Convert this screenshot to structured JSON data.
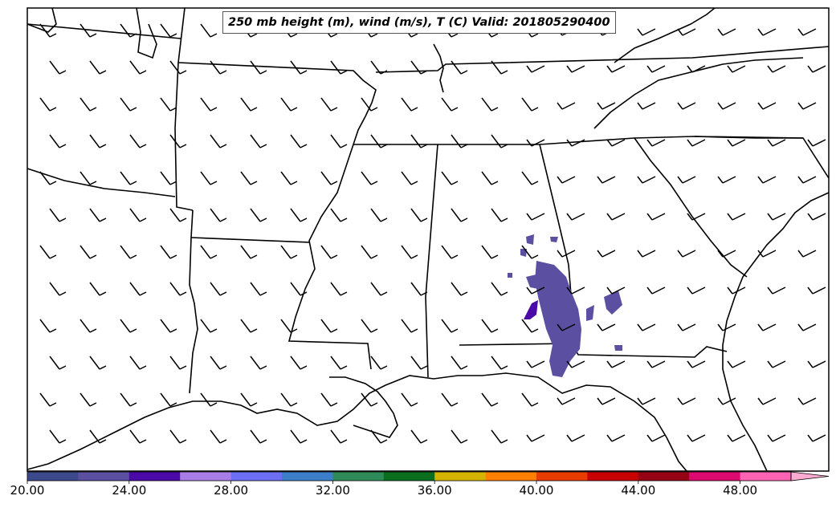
{
  "title": "250 mb height (m), wind (m/s), T (C) Valid: 201805290400",
  "colorbar": {
    "colors": [
      "#3c4a8c",
      "#5a4fa0",
      "#4b0aa8",
      "#a87ee6",
      "#6e6ef5",
      "#3c7ec8",
      "#2e8b57",
      "#0a6e1e",
      "#d4b400",
      "#ff7f00",
      "#e83c00",
      "#c80000",
      "#960014",
      "#dc0a6e",
      "#ff64b4",
      "#ffaad2"
    ],
    "tick_labels": [
      "20.00",
      "24.00",
      "28.00",
      "32.00",
      "36.00",
      "40.00",
      "44.00",
      "48.00"
    ]
  },
  "fill_color": "#5a4fa0"
}
